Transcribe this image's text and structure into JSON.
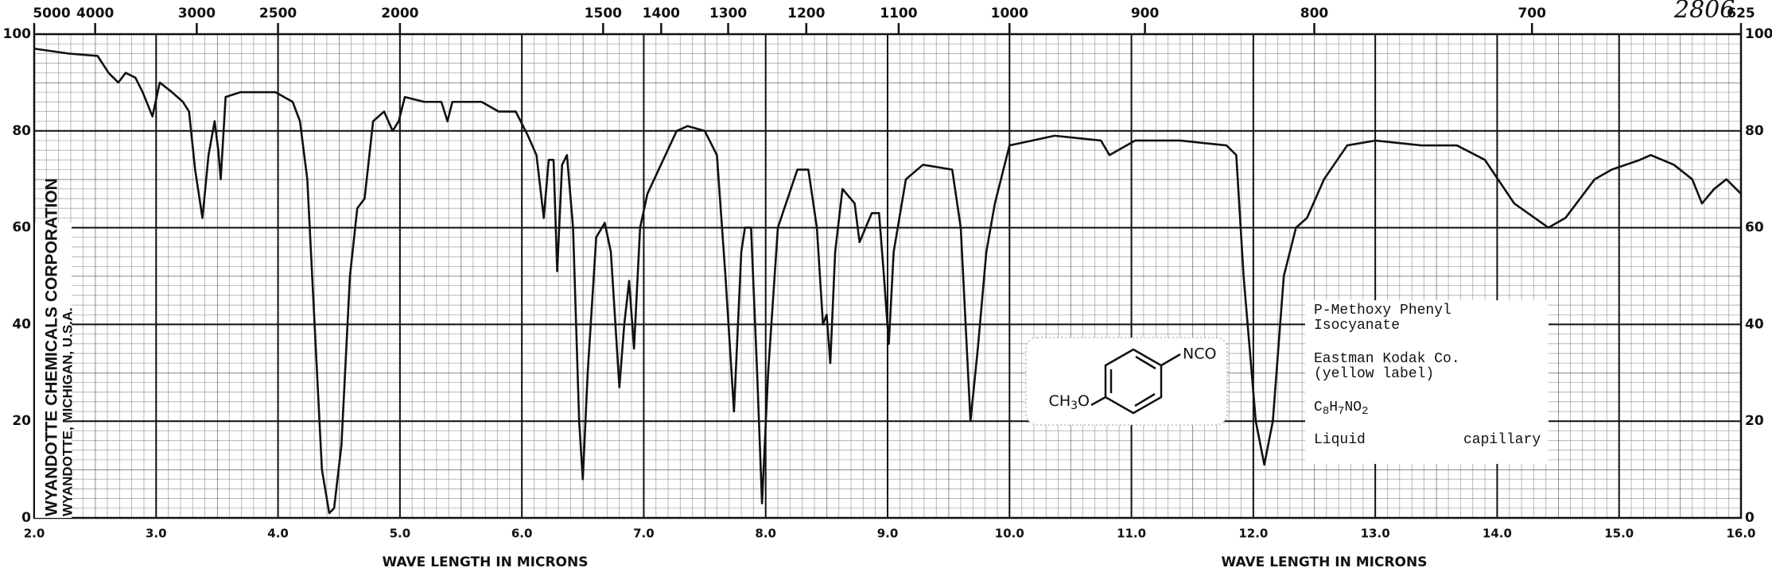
{
  "chart_data": {
    "type": "line",
    "xlabel": "WAVE LENGTH IN MICRONS",
    "handwritten": "2806",
    "xlim": [
      2,
      16
    ],
    "xticks": [
      {
        "value": 2,
        "label": "2.0"
      },
      {
        "value": 3,
        "label": "3.0"
      },
      {
        "value": 4,
        "label": "4.0"
      },
      {
        "value": 5,
        "label": "5.0"
      },
      {
        "value": 6,
        "label": "6.0"
      },
      {
        "value": 7,
        "label": "7.0"
      },
      {
        "value": 8,
        "label": "8.0"
      },
      {
        "value": 9,
        "label": "9.0"
      },
      {
        "value": 10,
        "label": "10.0"
      },
      {
        "value": 11,
        "label": "11.0"
      },
      {
        "value": 12,
        "label": "12.0"
      },
      {
        "value": 13,
        "label": "13.0"
      },
      {
        "value": 14,
        "label": "14.0"
      },
      {
        "value": 15,
        "label": "15.0"
      },
      {
        "value": 16,
        "label": "16.0"
      }
    ],
    "x2lim": [
      5000,
      625
    ],
    "x2scale": "reciprocal",
    "x2ticks": [
      5000,
      4000,
      3000,
      2500,
      2000,
      1500,
      1400,
      1300,
      1200,
      1100,
      1000,
      900,
      800,
      700,
      625
    ],
    "ylim": [
      0,
      100
    ],
    "yticks": [
      0,
      20,
      40,
      60,
      80,
      100
    ],
    "grid": true,
    "series": [
      {
        "color": "#111111",
        "x": [
          2.0,
          2.28,
          2.52,
          2.61,
          2.69,
          2.75,
          2.83,
          2.89,
          2.97,
          3.03,
          3.13,
          3.22,
          3.27,
          3.32,
          3.38,
          3.43,
          3.48,
          3.51,
          3.53,
          3.57,
          3.69,
          3.98,
          4.12,
          4.18,
          4.24,
          4.3,
          4.36,
          4.42,
          4.46,
          4.52,
          4.59,
          4.65,
          4.71,
          4.78,
          4.87,
          4.94,
          4.99,
          5.04,
          5.2,
          5.34,
          5.39,
          5.43,
          5.67,
          5.81,
          5.95,
          6.05,
          6.12,
          6.18,
          6.22,
          6.26,
          6.29,
          6.33,
          6.37,
          6.42,
          6.47,
          6.5,
          6.54,
          6.61,
          6.68,
          6.73,
          6.8,
          6.84,
          6.88,
          6.92,
          6.97,
          7.03,
          7.27,
          7.36,
          7.5,
          7.6,
          7.67,
          7.74,
          7.8,
          7.83,
          7.88,
          7.93,
          7.97,
          8.02,
          8.1,
          8.26,
          8.35,
          8.42,
          8.47,
          8.5,
          8.53,
          8.57,
          8.63,
          8.73,
          8.77,
          8.87,
          8.93,
          8.97,
          9.01,
          9.05,
          9.15,
          9.29,
          9.53,
          9.6,
          9.64,
          9.68,
          9.74,
          9.81,
          9.88,
          10.0,
          10.37,
          10.75,
          10.82,
          11.03,
          11.4,
          11.78,
          11.86,
          11.92,
          12.02,
          12.09,
          12.16,
          12.25,
          12.35,
          12.44,
          12.58,
          12.77,
          13.0,
          13.38,
          13.67,
          13.9,
          14.14,
          14.42,
          14.56,
          14.8,
          14.94,
          15.17,
          15.26,
          15.45,
          15.6,
          15.68,
          15.78,
          15.88,
          16.0
        ],
        "values": [
          97,
          96,
          95.5,
          92,
          90,
          92,
          91,
          88,
          83,
          90,
          88,
          86,
          84,
          72,
          62,
          75,
          82,
          76,
          70,
          87,
          88,
          88,
          86,
          82,
          70,
          40,
          10,
          1,
          2,
          15,
          50,
          64,
          66,
          82,
          84,
          80,
          82,
          87,
          86,
          86,
          82,
          86,
          86,
          84,
          84,
          79,
          75,
          62,
          74,
          74,
          51,
          73,
          75,
          60,
          20,
          8,
          30,
          58,
          61,
          55,
          27,
          40,
          49,
          35,
          60,
          67,
          80,
          81,
          80,
          75,
          50,
          22,
          55,
          60,
          60,
          30,
          3,
          30,
          60,
          72,
          72,
          60,
          40,
          42,
          32,
          55,
          68,
          65,
          57,
          63,
          63,
          50,
          36,
          55,
          70,
          73,
          72,
          60,
          40,
          20,
          35,
          55,
          65,
          77,
          79,
          78,
          75,
          78,
          78,
          77,
          75,
          50,
          20,
          11,
          20,
          50,
          60,
          62,
          70,
          77,
          78,
          77,
          77,
          74,
          65,
          60,
          62,
          70,
          72,
          74,
          75,
          73,
          70,
          65,
          68,
          70,
          67
        ]
      }
    ],
    "publisher": [
      "WYANDOTTE CHEMICALS CORPORATION",
      "WYANDOTTE, MICHIGAN, U.S.A."
    ],
    "structure": {
      "substituent": "NCO",
      "group": [
        "CH",
        "3",
        "O"
      ]
    },
    "sample": {
      "name": [
        "P-Methoxy Phenyl",
        "Isocyanate"
      ],
      "source": [
        "Eastman Kodak Co.",
        "(yellow label)"
      ],
      "formula": [
        "C",
        "8",
        "H",
        "7",
        "NO",
        "2"
      ],
      "state": "Liquid",
      "cell": "capillary"
    }
  }
}
